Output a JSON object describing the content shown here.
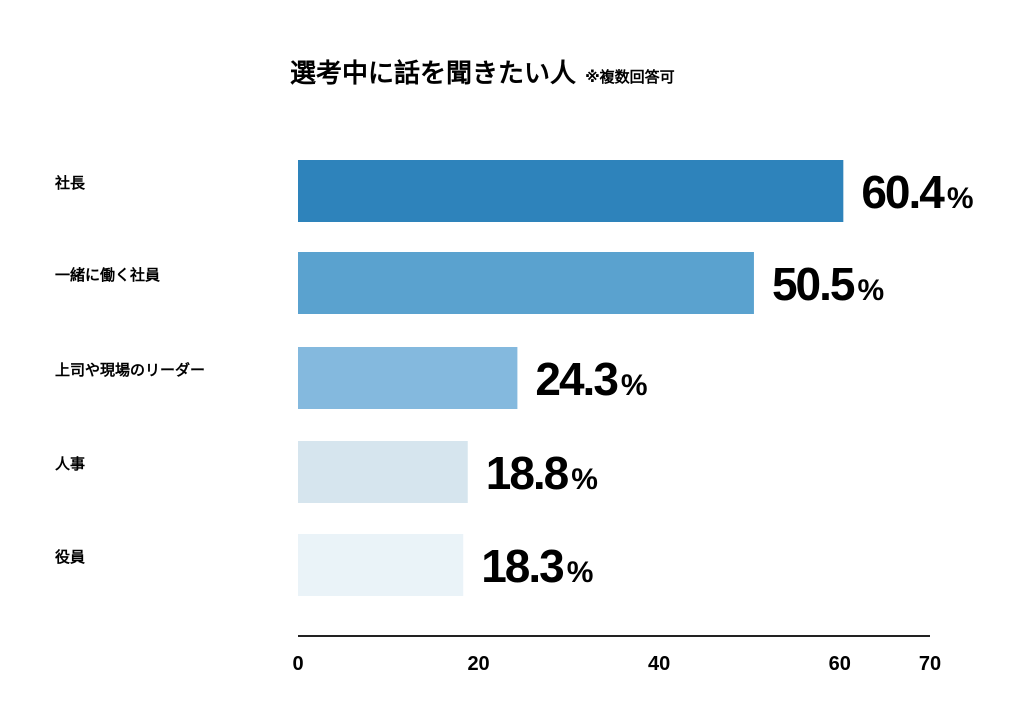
{
  "chart_data": {
    "type": "bar",
    "orientation": "horizontal",
    "title": "選考中に話を聞きたい人",
    "subtitle": "※複数回答可",
    "categories": [
      "社長",
      "一緒に働く社員",
      "上司や現場のリーダー",
      "人事",
      "役員"
    ],
    "values": [
      60.4,
      50.5,
      24.3,
      18.8,
      18.3
    ],
    "value_labels": [
      "60.4",
      "50.5",
      "24.3",
      "18.8",
      "18.3"
    ],
    "unit": "%",
    "colors": [
      "#2e83bb",
      "#5aa2cf",
      "#84b9de",
      "#d6e5ee",
      "#eaf3f8"
    ],
    "xlim": [
      0,
      70
    ],
    "xticks": [
      "0",
      "20",
      "40",
      "60",
      "70"
    ],
    "xtick_values": [
      0,
      20,
      40,
      60,
      70
    ],
    "xlabel": "",
    "ylabel": "",
    "grid": false,
    "legend": "none"
  }
}
